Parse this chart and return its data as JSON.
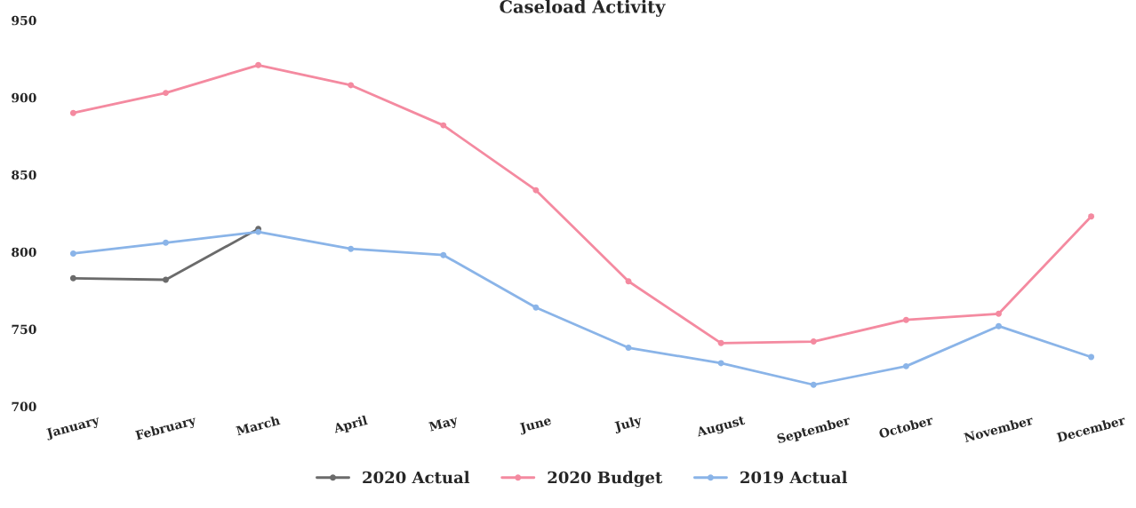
{
  "chart_data": {
    "type": "line",
    "title": "Caseload Activity",
    "categories": [
      "January",
      "February",
      "March",
      "April",
      "May",
      "June",
      "July",
      "August",
      "September",
      "October",
      "November",
      "December"
    ],
    "series": [
      {
        "name": "2020 Actual",
        "color": "#6b6b6b",
        "values": [
          783,
          782,
          815,
          null,
          null,
          null,
          null,
          null,
          null,
          null,
          null,
          null
        ]
      },
      {
        "name": "2020 Budget",
        "color": "#f48aa0",
        "values": [
          890,
          903,
          921,
          908,
          882,
          840,
          781,
          741,
          742,
          756,
          760,
          823
        ]
      },
      {
        "name": "2019 Actual",
        "color": "#8ab4e8",
        "values": [
          799,
          806,
          813,
          802,
          798,
          764,
          738,
          728,
          714,
          726,
          752,
          732
        ]
      }
    ],
    "ylim": [
      700,
      950
    ],
    "yticks": [
      700,
      750,
      800,
      850,
      900,
      950
    ],
    "grid": false,
    "legend": "bottom",
    "marker": "circle",
    "line_style": "solid"
  }
}
